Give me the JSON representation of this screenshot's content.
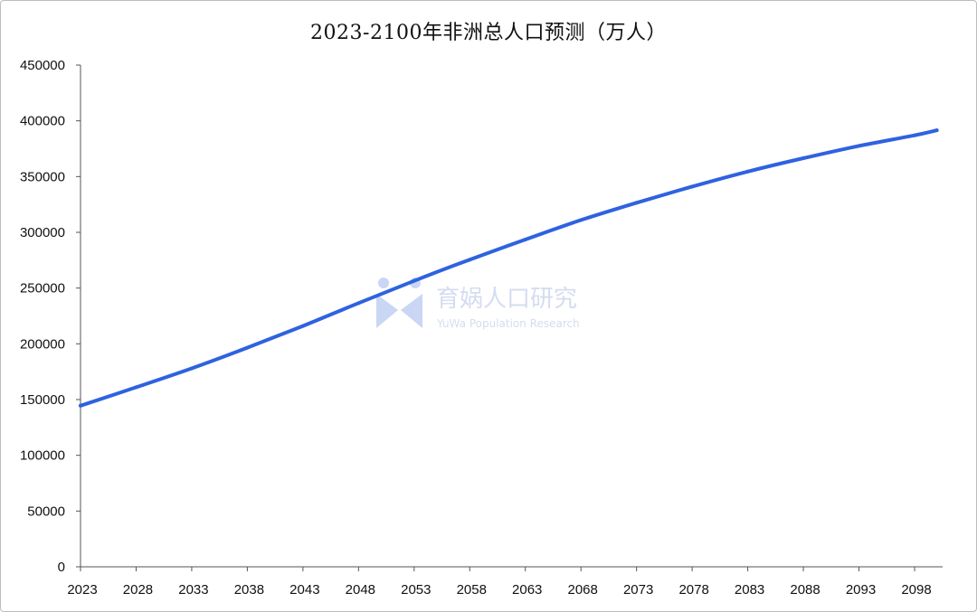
{
  "chart_data": {
    "type": "line",
    "title": "2023-2100年非洲总人口预测（万人）",
    "xlabel": "",
    "ylabel": "",
    "ylim": [
      0,
      450000
    ],
    "yticks": [
      0,
      50000,
      100000,
      150000,
      200000,
      250000,
      300000,
      350000,
      400000,
      450000
    ],
    "xticks": [
      "2023",
      "2028",
      "2033",
      "2038",
      "2043",
      "2048",
      "2053",
      "2058",
      "2063",
      "2068",
      "2073",
      "2078",
      "2083",
      "2088",
      "2093",
      "2098"
    ],
    "grid": false,
    "legend": "none",
    "line_color": "#2f62e0",
    "series": [
      {
        "x": [
          2023,
          2028,
          2033,
          2038,
          2043,
          2048,
          2053,
          2058,
          2063,
          2068,
          2073,
          2078,
          2083,
          2088,
          2093,
          2098,
          2100
        ],
        "values": [
          144500,
          161000,
          178000,
          196500,
          216000,
          236500,
          256500,
          275500,
          293500,
          311000,
          326500,
          341000,
          354500,
          366500,
          377500,
          387000,
          391500
        ]
      }
    ]
  },
  "watermark": {
    "brand": "育娲人口研究",
    "subtitle": "YuWa Population Research"
  }
}
